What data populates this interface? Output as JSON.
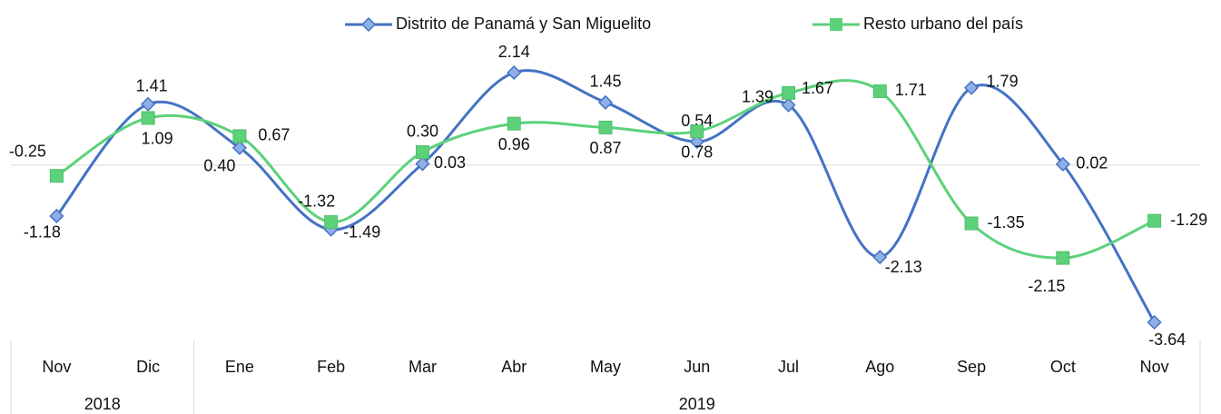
{
  "chart_data": {
    "type": "line",
    "categories": [
      "Nov",
      "Dic",
      "Ene",
      "Feb",
      "Mar",
      "Abr",
      "May",
      "Jun",
      "Jul",
      "Ago",
      "Sep",
      "Oct",
      "Nov"
    ],
    "groups": [
      {
        "label": "2018",
        "count": 2
      },
      {
        "label": "2019",
        "count": 11
      }
    ],
    "series": [
      {
        "name": "Distrito de Panamá y San Miguelito",
        "color": "#4472c4",
        "marker": "diamond",
        "values": [
          -1.18,
          1.41,
          0.4,
          -1.49,
          0.03,
          2.14,
          1.45,
          0.54,
          1.39,
          -2.13,
          1.79,
          0.02,
          -3.64
        ],
        "value_labels": [
          "-1.18",
          "1.41",
          "0.40",
          "-1.49",
          "0.03",
          "2.14",
          "1.45",
          "0.54",
          "1.39",
          "-2.13",
          "1.79",
          "0.02",
          "-3.64"
        ]
      },
      {
        "name": "Resto urbano del país",
        "color": "#5cd17a",
        "marker": "square",
        "values": [
          -0.25,
          1.09,
          0.67,
          -1.32,
          0.3,
          0.96,
          0.87,
          0.78,
          1.67,
          1.71,
          -1.35,
          -2.15,
          -1.29
        ],
        "value_labels": [
          "-0.25",
          "1.09",
          "0.67",
          "-1.32",
          "0.30",
          "0.96",
          "0.87",
          "0.78",
          "1.67",
          "1.71",
          "-1.35",
          "-2.15",
          "-1.29"
        ]
      }
    ],
    "smooth": true,
    "legend": "top"
  }
}
